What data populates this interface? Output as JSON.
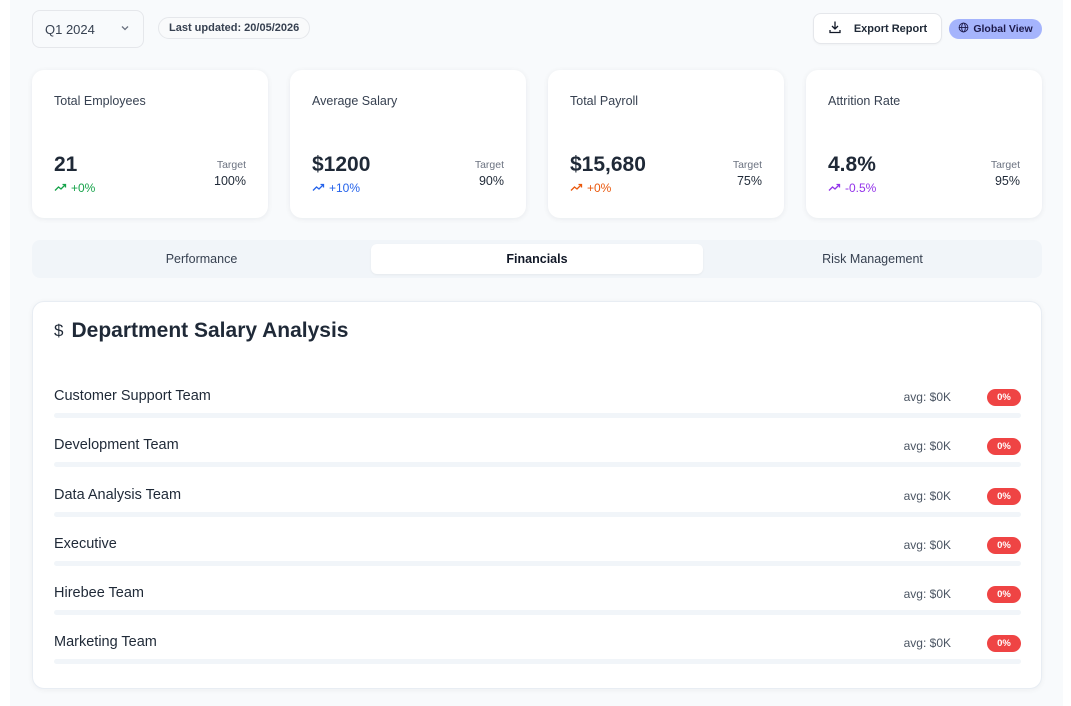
{
  "header": {
    "period": "Q1 2024",
    "last_updated": "Last updated: 20/05/2026",
    "export_label": "Export Report",
    "view_label": "Global View"
  },
  "kpis": [
    {
      "title": "Total Employees",
      "value": "21",
      "change": "+0%",
      "target_label": "Target",
      "target": "100%",
      "color": "#16a34a"
    },
    {
      "title": "Average Salary",
      "value": "$1200",
      "change": "+10%",
      "target_label": "Target",
      "target": "90%",
      "color": "#2563eb"
    },
    {
      "title": "Total Payroll",
      "value": "$15,680",
      "change": "+0%",
      "target_label": "Target",
      "target": "75%",
      "color": "#ea580c"
    },
    {
      "title": "Attrition Rate",
      "value": "4.8%",
      "change": "-0.5%",
      "target_label": "Target",
      "target": "95%",
      "color": "#9333ea"
    }
  ],
  "tabs": [
    {
      "label": "Performance",
      "active": false
    },
    {
      "label": "Financials",
      "active": true
    },
    {
      "label": "Risk Management",
      "active": false
    }
  ],
  "panel": {
    "icon": "dollar-icon",
    "title": "Department Salary Analysis",
    "departments": [
      {
        "name": "Customer Support Team",
        "avg": "avg: $0K",
        "badge": "0%"
      },
      {
        "name": "Development Team",
        "avg": "avg: $0K",
        "badge": "0%"
      },
      {
        "name": "Data Analysis Team",
        "avg": "avg: $0K",
        "badge": "0%"
      },
      {
        "name": "Executive",
        "avg": "avg: $0K",
        "badge": "0%"
      },
      {
        "name": "Hirebee Team",
        "avg": "avg: $0K",
        "badge": "0%"
      },
      {
        "name": "Marketing Team",
        "avg": "avg: $0K",
        "badge": "0%"
      }
    ]
  }
}
